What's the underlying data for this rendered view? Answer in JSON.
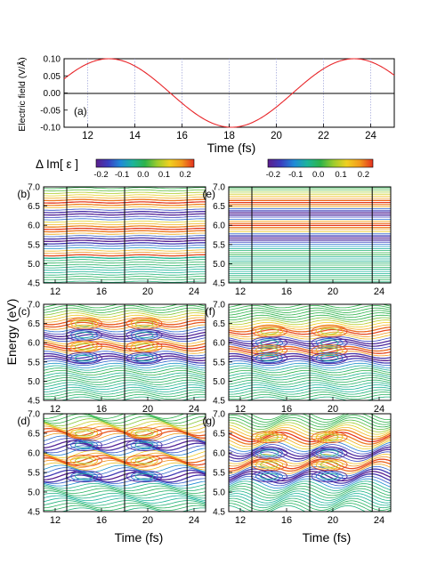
{
  "chart_data": [
    {
      "type": "line",
      "panel_label": "(a)",
      "xlabel": "Time (fs)",
      "ylabel": "Electric field (V/Å)",
      "xlim": [
        11,
        25
      ],
      "ylim": [
        -0.1,
        0.1
      ],
      "xticks": [
        12,
        14,
        16,
        18,
        20,
        22,
        24
      ],
      "yticks": [
        "-0.10",
        "-0.05",
        "0.00",
        "0.05",
        "0.10"
      ],
      "grid": "vertical dotted at even ticks",
      "series": [
        {
          "color": "#e8262a",
          "amplitude": 0.1,
          "period_fs": 10.4,
          "peak_time_fs": 12.9
        }
      ]
    },
    {
      "type": "colorbar",
      "title": "Δ Im[ ε ]",
      "left_ticks": [
        "-0.2",
        "-0.1",
        "0.0",
        "0.1",
        "0.2"
      ],
      "right_ticks": [
        "-0.2",
        "-0.1",
        "0.0",
        "0.1",
        "0.2"
      ],
      "colors": [
        "#5b1e8c",
        "#3a3fbf",
        "#1f8ad8",
        "#1bb49a",
        "#2db34a",
        "#9ccc2d",
        "#f0d020",
        "#f29a1c",
        "#e3311f"
      ]
    },
    {
      "type": "contour",
      "xlabel": "Time (fs)",
      "ylabel": "Energy (eV)",
      "xlim": [
        11,
        25
      ],
      "ylim": [
        4.5,
        7.0
      ],
      "xticks": [
        12,
        16,
        20,
        24
      ],
      "yticks": [
        "4.5",
        "5.0",
        "5.5",
        "6.0",
        "6.5",
        "7.0"
      ],
      "vertical_lines_fs": [
        13,
        18,
        23.4
      ],
      "panels": [
        {
          "label": "(b)",
          "kind": "smooth-bands",
          "bands": [
            6.6,
            6.3,
            5.9,
            5.6,
            5.2
          ]
        },
        {
          "label": "(c)",
          "kind": "wavy-bands",
          "bands": [
            6.5,
            6.2,
            5.9,
            5.6
          ]
        },
        {
          "label": "(d)",
          "kind": "oscillating",
          "bands": [
            6.5,
            6.2,
            5.8,
            5.4
          ]
        },
        {
          "label": "(e)",
          "kind": "flat-bands",
          "bands": [
            6.6,
            6.3,
            6.0,
            5.65
          ]
        },
        {
          "label": "(f)",
          "kind": "wavy-bands",
          "bands": [
            6.3,
            6.0,
            5.8,
            5.6
          ]
        },
        {
          "label": "(g)",
          "kind": "diagonal-bands",
          "bands": [
            6.4,
            6.0,
            5.7,
            5.4
          ]
        }
      ]
    }
  ]
}
